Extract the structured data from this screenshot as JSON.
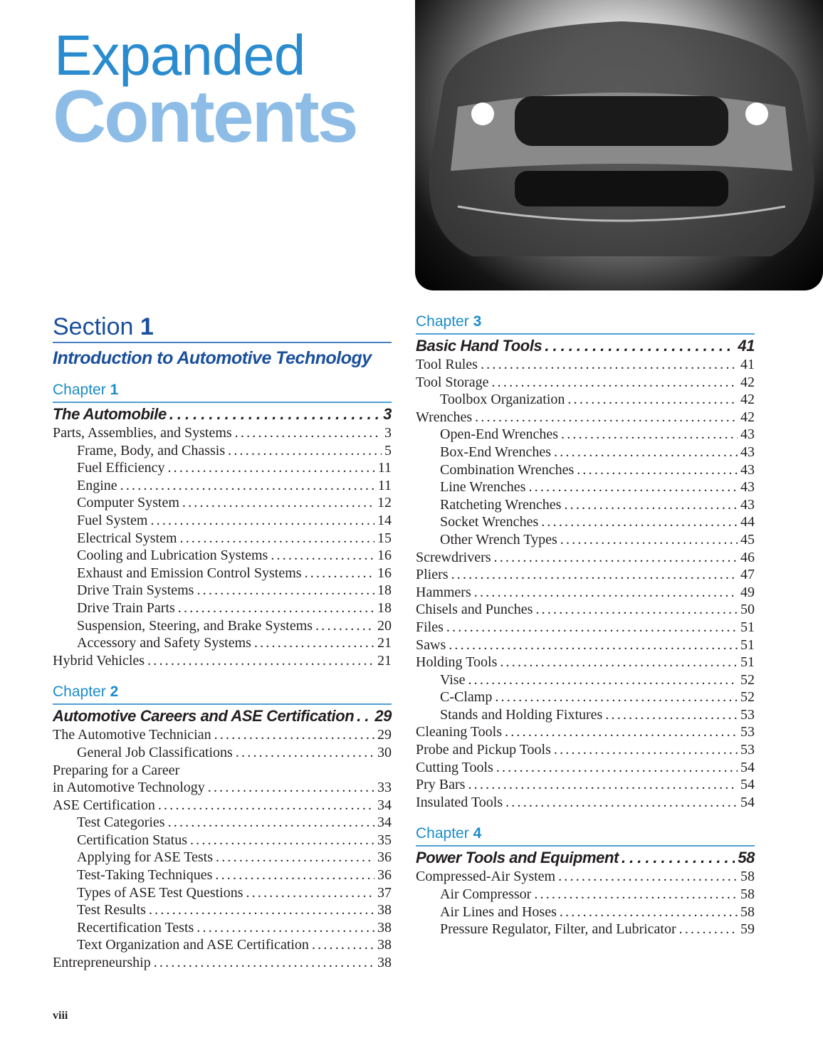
{
  "header": {
    "title_line1": "Expanded",
    "title_line2": "Contents"
  },
  "folio": "viii",
  "section": {
    "label": "Section",
    "number": "1",
    "title": "Introduction to Automotive Technology"
  },
  "left_chapters": [
    {
      "label": "Chapter",
      "number": "1",
      "entries": [
        {
          "level": "title",
          "text": "The Automobile",
          "page": "3"
        },
        {
          "level": 0,
          "text": "Parts, Assemblies, and Systems",
          "page": "3"
        },
        {
          "level": 1,
          "text": "Frame, Body, and Chassis",
          "page": "5"
        },
        {
          "level": 1,
          "text": "Fuel Efficiency",
          "page": "11"
        },
        {
          "level": 1,
          "text": "Engine",
          "page": "11"
        },
        {
          "level": 1,
          "text": "Computer System",
          "page": "12"
        },
        {
          "level": 1,
          "text": "Fuel System",
          "page": "14"
        },
        {
          "level": 1,
          "text": "Electrical System",
          "page": "15"
        },
        {
          "level": 1,
          "text": "Cooling and Lubrication Systems",
          "page": "16"
        },
        {
          "level": 1,
          "text": "Exhaust and Emission Control Systems",
          "page": "16"
        },
        {
          "level": 1,
          "text": "Drive Train Systems",
          "page": "18"
        },
        {
          "level": 1,
          "text": "Drive Train Parts",
          "page": "18"
        },
        {
          "level": 1,
          "text": "Suspension, Steering, and Brake Systems",
          "page": "20"
        },
        {
          "level": 1,
          "text": "Accessory and Safety Systems",
          "page": "21"
        },
        {
          "level": 0,
          "text": "Hybrid Vehicles",
          "page": "21"
        }
      ]
    },
    {
      "label": "Chapter",
      "number": "2",
      "entries": [
        {
          "level": "title",
          "text": "Automotive Careers and ASE Certification",
          "page": "29"
        },
        {
          "level": 0,
          "text": "The Automotive Technician",
          "page": "29"
        },
        {
          "level": 1,
          "text": "General Job Classifications",
          "page": "30"
        },
        {
          "level": 0,
          "text": "Preparing for a Career",
          "page": ""
        },
        {
          "level": 0,
          "text": "in Automotive Technology",
          "page": "33"
        },
        {
          "level": 0,
          "text": "ASE Certification",
          "page": "34"
        },
        {
          "level": 1,
          "text": "Test Categories",
          "page": "34"
        },
        {
          "level": 1,
          "text": "Certification Status",
          "page": "35"
        },
        {
          "level": 1,
          "text": "Applying for ASE Tests",
          "page": "36"
        },
        {
          "level": 1,
          "text": "Test-Taking Techniques",
          "page": "36"
        },
        {
          "level": 1,
          "text": "Types of ASE Test Questions",
          "page": "37"
        },
        {
          "level": 1,
          "text": "Test Results",
          "page": "38"
        },
        {
          "level": 1,
          "text": "Recertification Tests",
          "page": "38"
        },
        {
          "level": 1,
          "text": "Text Organization and ASE Certification",
          "page": "38"
        },
        {
          "level": 0,
          "text": "Entrepreneurship",
          "page": "38"
        }
      ]
    }
  ],
  "right_chapters": [
    {
      "label": "Chapter",
      "number": "3",
      "entries": [
        {
          "level": "title",
          "text": "Basic Hand Tools",
          "page": "41"
        },
        {
          "level": 0,
          "text": "Tool Rules",
          "page": "41"
        },
        {
          "level": 0,
          "text": "Tool Storage",
          "page": "42"
        },
        {
          "level": 1,
          "text": "Toolbox Organization",
          "page": "42"
        },
        {
          "level": 0,
          "text": "Wrenches",
          "page": "42"
        },
        {
          "level": 1,
          "text": "Open-End Wrenches",
          "page": "43"
        },
        {
          "level": 1,
          "text": "Box-End Wrenches",
          "page": "43"
        },
        {
          "level": 1,
          "text": "Combination Wrenches",
          "page": "43"
        },
        {
          "level": 1,
          "text": "Line Wrenches",
          "page": "43"
        },
        {
          "level": 1,
          "text": "Ratcheting Wrenches",
          "page": "43"
        },
        {
          "level": 1,
          "text": "Socket Wrenches",
          "page": "44"
        },
        {
          "level": 1,
          "text": "Other Wrench Types",
          "page": "45"
        },
        {
          "level": 0,
          "text": "Screwdrivers",
          "page": "46"
        },
        {
          "level": 0,
          "text": "Pliers",
          "page": "47"
        },
        {
          "level": 0,
          "text": "Hammers",
          "page": "49"
        },
        {
          "level": 0,
          "text": "Chisels and Punches",
          "page": "50"
        },
        {
          "level": 0,
          "text": "Files",
          "page": "51"
        },
        {
          "level": 0,
          "text": "Saws",
          "page": "51"
        },
        {
          "level": 0,
          "text": "Holding Tools",
          "page": "51"
        },
        {
          "level": 1,
          "text": "Vise",
          "page": "52"
        },
        {
          "level": 1,
          "text": "C-Clamp",
          "page": "52"
        },
        {
          "level": 1,
          "text": "Stands and Holding Fixtures",
          "page": "53"
        },
        {
          "level": 0,
          "text": "Cleaning Tools",
          "page": "53"
        },
        {
          "level": 0,
          "text": "Probe and Pickup Tools",
          "page": "53"
        },
        {
          "level": 0,
          "text": "Cutting Tools",
          "page": "54"
        },
        {
          "level": 0,
          "text": "Pry Bars",
          "page": "54"
        },
        {
          "level": 0,
          "text": "Insulated Tools",
          "page": "54"
        }
      ]
    },
    {
      "label": "Chapter",
      "number": "4",
      "entries": [
        {
          "level": "title",
          "text": "Power Tools and Equipment",
          "page": "58"
        },
        {
          "level": 0,
          "text": "Compressed-Air System",
          "page": "58"
        },
        {
          "level": 1,
          "text": "Air Compressor",
          "page": "58"
        },
        {
          "level": 1,
          "text": "Air Lines and Hoses",
          "page": "58"
        },
        {
          "level": 1,
          "text": "Pressure Regulator, Filter, and Lubricator",
          "page": "59"
        }
      ]
    }
  ],
  "colors": {
    "section_blue": "#1a4f9c",
    "chapter_blue": "#1a8ccc",
    "expanded_blue": "#2a8ccf",
    "contents_blue": "#8dbde6"
  }
}
